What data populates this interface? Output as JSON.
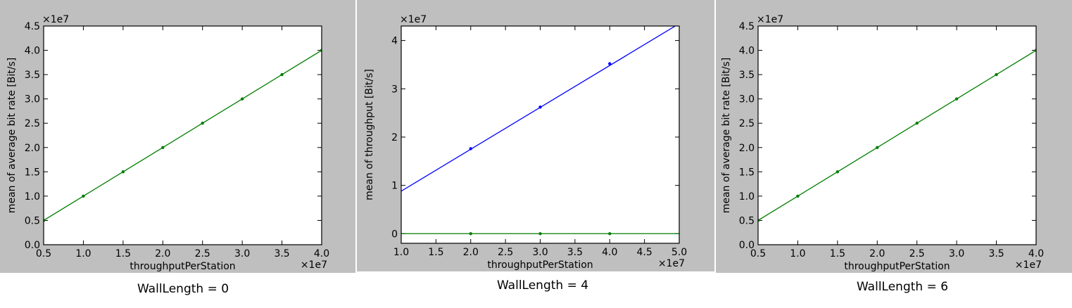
{
  "charts": [
    {
      "caption": "WallLength = 0",
      "chart_data": {
        "type": "line",
        "xlabel": "throughputPerStation",
        "ylabel": "mean of average bit rate [Bit/s]",
        "x_multiplier": "×1e7",
        "y_multiplier": "×1e7",
        "xlim": [
          0.5,
          4.0
        ],
        "ylim": [
          0.0,
          4.5
        ],
        "xticks": [
          "0.5",
          "1.0",
          "1.5",
          "2.0",
          "2.5",
          "3.0",
          "3.5",
          "4.0"
        ],
        "yticks": [
          "0.0",
          "0.5",
          "1.0",
          "1.5",
          "2.0",
          "2.5",
          "3.0",
          "3.5",
          "4.0",
          "4.5"
        ],
        "grid": false,
        "series": [
          {
            "color": "#007f00",
            "x": [
              0.5,
              1.0,
              1.5,
              2.0,
              2.5,
              3.0,
              3.5,
              4.0
            ],
            "y": [
              0.5,
              1.0,
              1.5,
              2.0,
              2.5,
              3.0,
              3.5,
              4.0
            ]
          }
        ]
      }
    },
    {
      "caption": "WallLength = 4",
      "chart_data": {
        "type": "line",
        "xlabel": "throughputPerStation",
        "ylabel": "mean of throughput [Bit/s]",
        "x_multiplier": "×1e7",
        "y_multiplier": "×1e7",
        "xlim": [
          1.0,
          5.0
        ],
        "ylim": [
          -0.2,
          4.3
        ],
        "xticks": [
          "1.0",
          "1.5",
          "2.0",
          "2.5",
          "3.0",
          "3.5",
          "4.0",
          "4.5",
          "5.0"
        ],
        "yticks": [
          "0",
          "1",
          "2",
          "3",
          "4"
        ],
        "grid": false,
        "series": [
          {
            "color": "#0000ff",
            "x": [
              2.0,
              3.0,
              4.0
            ],
            "y": [
              1.76,
              2.62,
              3.52
            ],
            "fit": {
              "x": [
                1.0,
                5.0
              ],
              "y": [
                0.88,
                4.35
              ]
            }
          },
          {
            "color": "#007f00",
            "x": [
              2.0,
              3.0,
              4.0
            ],
            "y": [
              0.0,
              0.0,
              0.0
            ],
            "fit": {
              "x": [
                1.0,
                5.0
              ],
              "y": [
                0.0,
                0.0
              ]
            }
          }
        ]
      }
    },
    {
      "caption": "WallLength = 6",
      "chart_data": {
        "type": "line",
        "xlabel": "throughputPerStation",
        "ylabel": "mean of average bit rate [Bit/s]",
        "x_multiplier": "×1e7",
        "y_multiplier": "×1e7",
        "xlim": [
          0.5,
          4.0
        ],
        "ylim": [
          0.0,
          4.5
        ],
        "xticks": [
          "0.5",
          "1.0",
          "1.5",
          "2.0",
          "2.5",
          "3.0",
          "3.5",
          "4.0"
        ],
        "yticks": [
          "0.0",
          "0.5",
          "1.0",
          "1.5",
          "2.0",
          "2.5",
          "3.0",
          "3.5",
          "4.0",
          "4.5"
        ],
        "grid": false,
        "series": [
          {
            "color": "#007f00",
            "x": [
              0.5,
              1.0,
              1.5,
              2.0,
              2.5,
              3.0,
              3.5,
              4.0
            ],
            "y": [
              0.5,
              1.0,
              1.5,
              2.0,
              2.5,
              3.0,
              3.5,
              4.0
            ]
          }
        ]
      }
    }
  ]
}
